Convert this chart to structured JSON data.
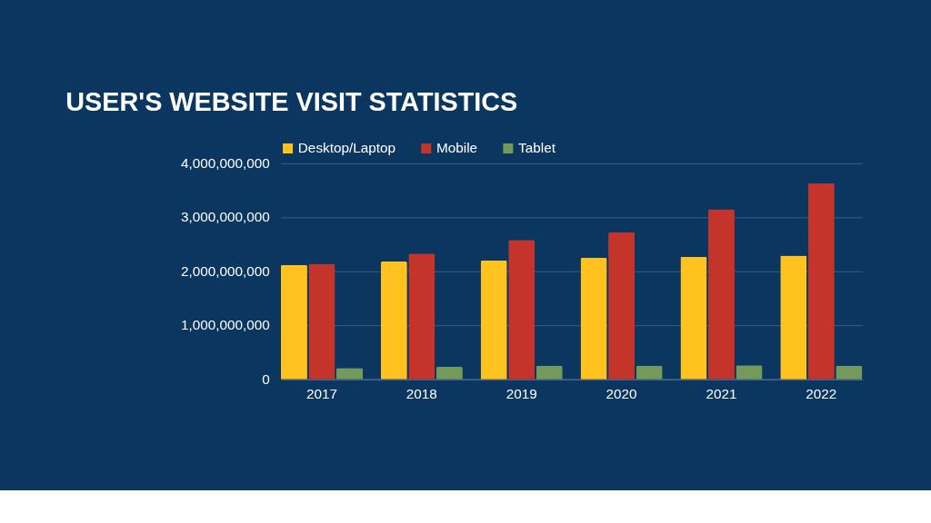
{
  "chart_data": {
    "type": "bar",
    "title": "USER'S WEBSITE VISIT STATISTICS",
    "categories": [
      "2017",
      "2018",
      "2019",
      "2020",
      "2021",
      "2022"
    ],
    "series": [
      {
        "name": "Desktop/Laptop",
        "color": "#ffc21f",
        "values": [
          2120000000,
          2180000000,
          2200000000,
          2250000000,
          2270000000,
          2290000000
        ]
      },
      {
        "name": "Mobile",
        "color": "#c4342b",
        "values": [
          2140000000,
          2330000000,
          2580000000,
          2720000000,
          3150000000,
          3630000000
        ]
      },
      {
        "name": "Tablet",
        "color": "#739a5b",
        "values": [
          210000000,
          230000000,
          250000000,
          250000000,
          260000000,
          250000000
        ]
      }
    ],
    "ylim": [
      0,
      4000000000
    ],
    "yticks": [
      0,
      {
        "value": 1000000000,
        "label": "1,000,000,000"
      },
      {
        "value": 2000000000,
        "label": "2,000,000,000"
      },
      {
        "value": 3000000000,
        "label": "3,000,000,000"
      },
      {
        "value": 4000000000,
        "label": "4,000,000,000"
      }
    ],
    "grid": "y",
    "legend": "top"
  }
}
